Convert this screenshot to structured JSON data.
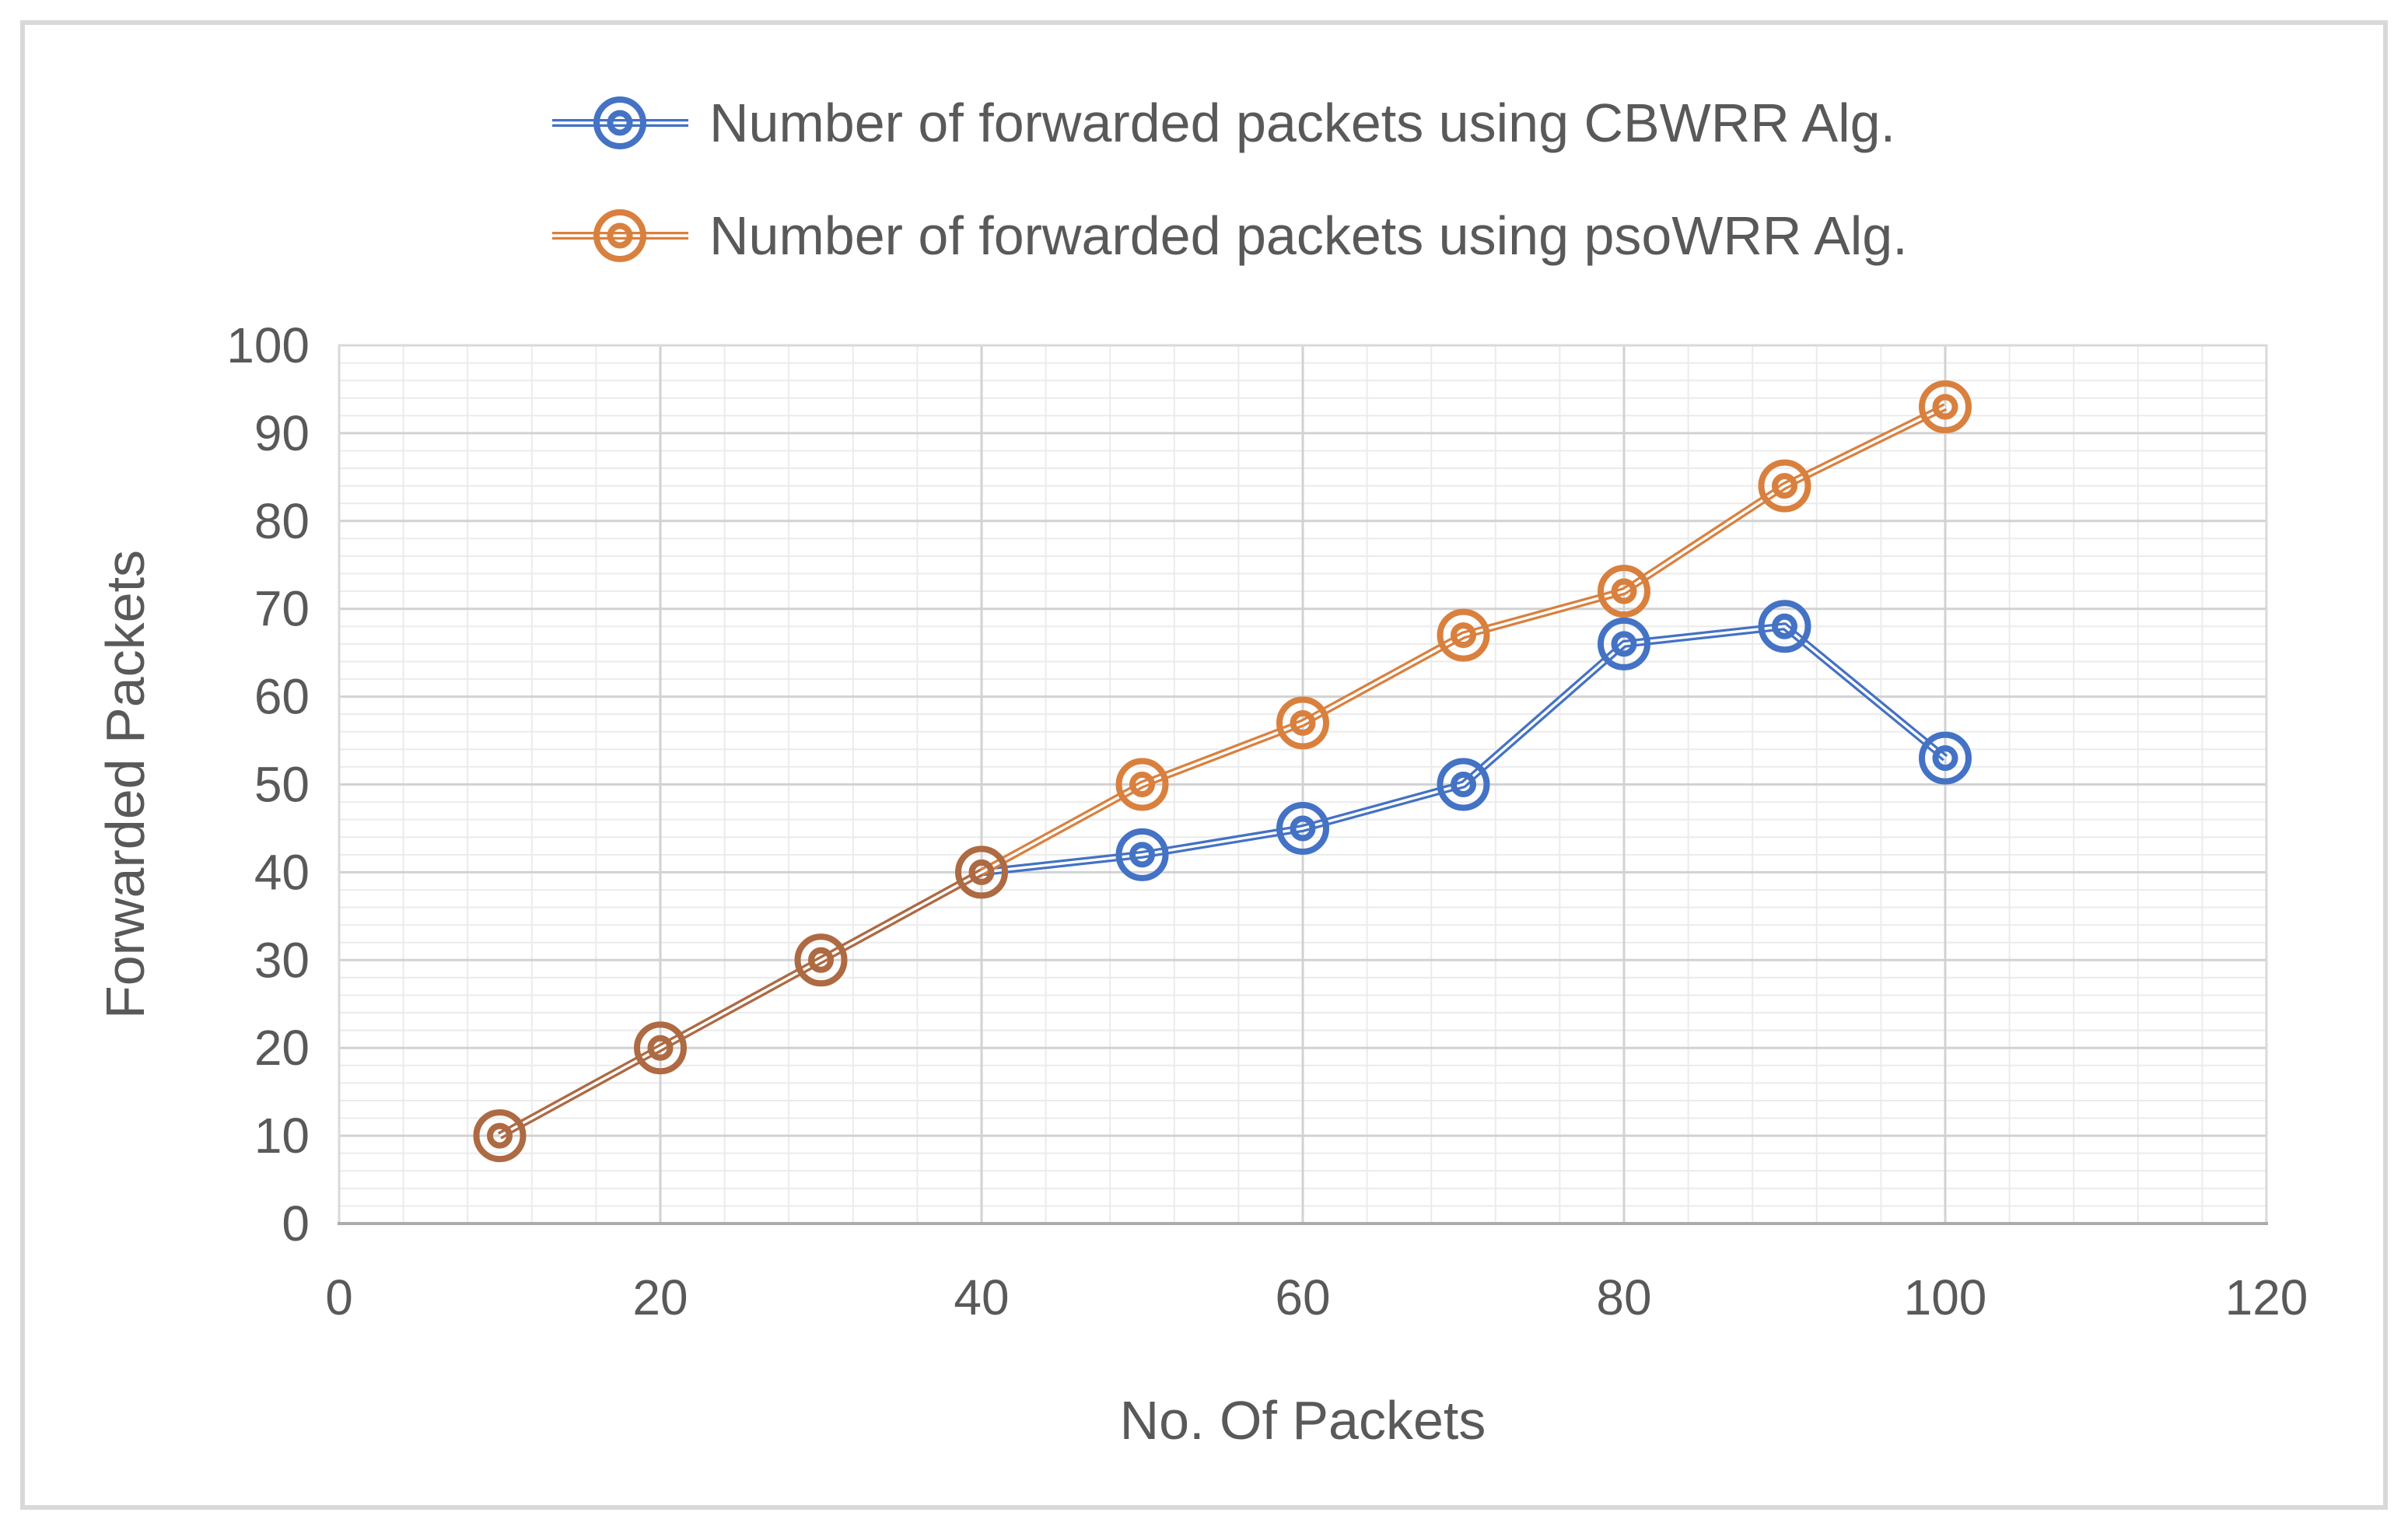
{
  "chart_data": {
    "type": "line",
    "title": "",
    "x": [
      10,
      20,
      30,
      40,
      50,
      60,
      70,
      80,
      90,
      100
    ],
    "series": [
      {
        "name": "Number of forwarded packets using CBWRR Alg.",
        "values": [
          10,
          20,
          30,
          40,
          42,
          45,
          50,
          66,
          68,
          53
        ],
        "color": "#4472C4"
      },
      {
        "name": "Number of forwarded packets using  psoWRR Alg.",
        "values": [
          10,
          20,
          30,
          40,
          50,
          57,
          67,
          72,
          84,
          93
        ],
        "color": "#D9803F"
      }
    ],
    "overlap_color": "#AE6A42",
    "marker_style": "donut",
    "xlabel": "No. Of Packets",
    "ylabel": "Forwarded Packets",
    "xlim": [
      0,
      120
    ],
    "ylim": [
      0,
      100
    ],
    "x_ticks": [
      0,
      20,
      40,
      60,
      80,
      100,
      120
    ],
    "y_ticks": [
      0,
      10,
      20,
      30,
      40,
      50,
      60,
      70,
      80,
      90,
      100
    ],
    "x_minor_step": 4,
    "y_minor_step": 2,
    "grid": true,
    "legend_position": "top-center",
    "colors": {
      "tick_text": "#595959",
      "axis_title_text": "#595959",
      "legend_text": "#595959",
      "grid_minor": "#ebebeb",
      "grid_major": "#d2d2d2",
      "plot_border": "#d9d9d9",
      "axis_line": "#ababab"
    }
  }
}
